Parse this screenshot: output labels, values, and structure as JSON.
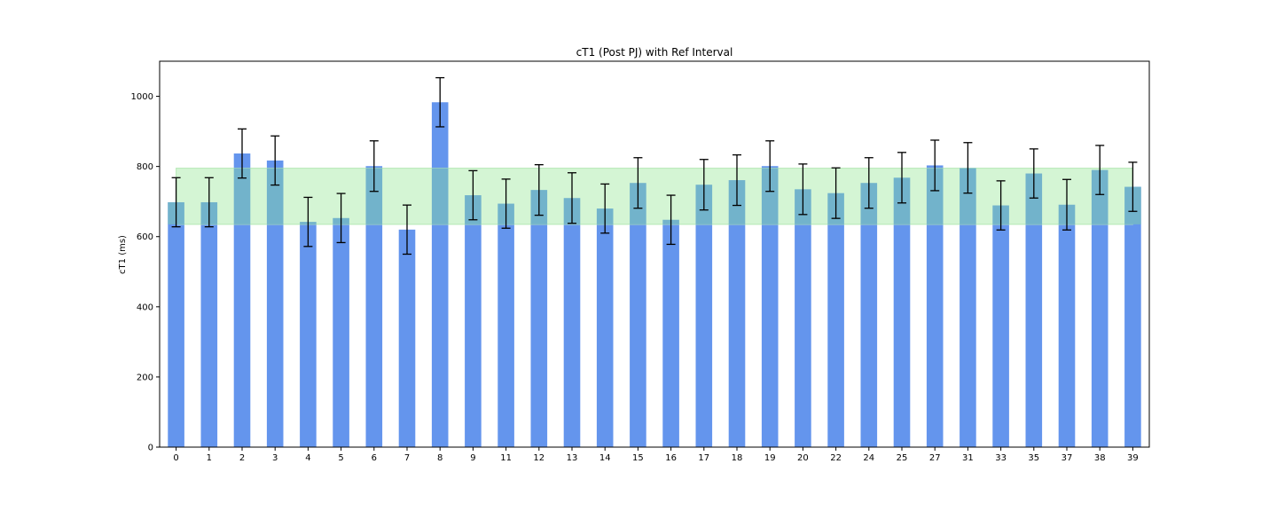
{
  "chart_data": {
    "type": "bar",
    "title": "cT1 (Post PJ) with Ref Interval",
    "xlabel": "",
    "ylabel": "cT1 (ms)",
    "ylim": [
      0,
      1100
    ],
    "yticks": [
      0,
      200,
      400,
      600,
      800,
      1000
    ],
    "grid": false,
    "categories": [
      "0",
      "1",
      "2",
      "3",
      "4",
      "5",
      "6",
      "7",
      "8",
      "9",
      "11",
      "12",
      "13",
      "14",
      "15",
      "16",
      "17",
      "18",
      "19",
      "20",
      "22",
      "24",
      "25",
      "27",
      "31",
      "33",
      "35",
      "37",
      "38",
      "39"
    ],
    "values": [
      698,
      698,
      837,
      817,
      642,
      653,
      801,
      620,
      983,
      718,
      694,
      733,
      710,
      680,
      753,
      648,
      748,
      761,
      801,
      735,
      724,
      753,
      768,
      803,
      796,
      689,
      780,
      691,
      790,
      742
    ],
    "error": [
      70,
      70,
      70,
      70,
      70,
      70,
      72,
      70,
      70,
      70,
      70,
      72,
      72,
      70,
      72,
      70,
      72,
      72,
      72,
      72,
      72,
      72,
      72,
      72,
      72,
      70,
      70,
      72,
      70,
      70
    ],
    "reference_interval": [
      635,
      795
    ],
    "colors": {
      "bar": "#6495ED",
      "bar_in_interval": "#72b3cb",
      "interval_fill": "#d4f5d4",
      "interval_edge": "#b6e8b6",
      "errorbar": "#000000"
    }
  }
}
